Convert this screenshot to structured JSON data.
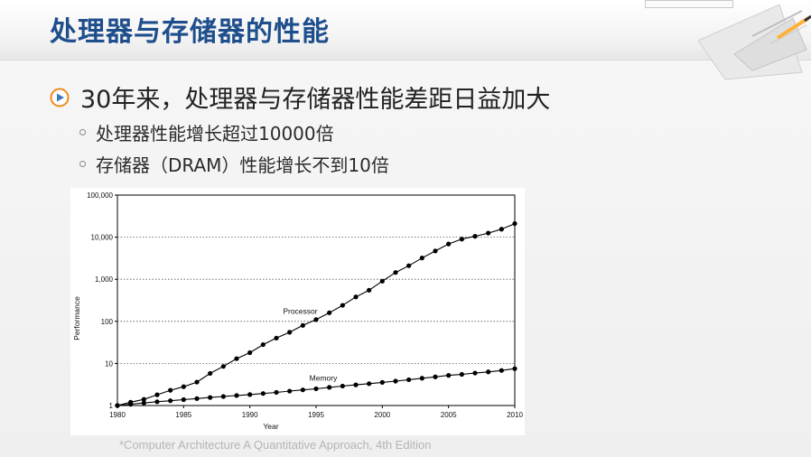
{
  "slide": {
    "title": "处理器与存储器的性能",
    "main_bullet": "30年来，处理器与存储器性能差距日益加大",
    "sub_bullets": [
      "处理器性能增长超过10000倍",
      "存储器（DRAM）性能增长不到10倍"
    ],
    "caption": "*Computer Architecture A Quantitative Approach, 4th Edition"
  },
  "colors": {
    "title": "#1e4e8c",
    "bullet_icon": "#f08a1c",
    "chart_line": "#000000"
  },
  "icons": {
    "bullet": "play-bullet-icon",
    "decoration": "ruler-pencil-decoration"
  },
  "chart_data": {
    "type": "line",
    "title": "",
    "xlabel": "Year",
    "ylabel": "Performance",
    "x_ticks": [
      "1980",
      "1985",
      "1990",
      "1995",
      "2000",
      "2005",
      "2010"
    ],
    "y_ticks": [
      "1",
      "10",
      "100",
      "1,000",
      "10,000",
      "100,000"
    ],
    "xlim": [
      1980,
      2010
    ],
    "ylim": [
      1,
      100000
    ],
    "y_scale": "log",
    "grid": "horizontal-dotted",
    "series": [
      {
        "name": "Processor",
        "x": [
          1980,
          1981,
          1982,
          1983,
          1984,
          1985,
          1986,
          1987,
          1988,
          1989,
          1990,
          1991,
          1992,
          1993,
          1994,
          1995,
          1996,
          1997,
          1998,
          1999,
          2000,
          2001,
          2002,
          2003,
          2004,
          2005,
          2006,
          2007,
          2008,
          2009,
          2010
        ],
        "y": [
          1,
          1.2,
          1.4,
          1.8,
          2.3,
          2.8,
          3.6,
          5.8,
          8.5,
          13,
          18,
          28,
          40,
          55,
          80,
          110,
          160,
          240,
          380,
          550,
          900,
          1450,
          2100,
          3200,
          4700,
          6900,
          9000,
          10500,
          12500,
          15500,
          21000
        ]
      },
      {
        "name": "Memory",
        "x": [
          1980,
          1981,
          1982,
          1983,
          1984,
          1985,
          1986,
          1987,
          1988,
          1989,
          1990,
          1991,
          1992,
          1993,
          1994,
          1995,
          1996,
          1997,
          1998,
          1999,
          2000,
          2001,
          2002,
          2003,
          2004,
          2005,
          2006,
          2007,
          2008,
          2009,
          2010
        ],
        "y": [
          1,
          1.07,
          1.15,
          1.23,
          1.3,
          1.38,
          1.46,
          1.55,
          1.64,
          1.73,
          1.82,
          1.93,
          2.05,
          2.2,
          2.35,
          2.5,
          2.7,
          2.9,
          3.1,
          3.3,
          3.55,
          3.8,
          4.1,
          4.45,
          4.8,
          5.2,
          5.5,
          5.9,
          6.3,
          6.8,
          7.5
        ]
      }
    ]
  }
}
